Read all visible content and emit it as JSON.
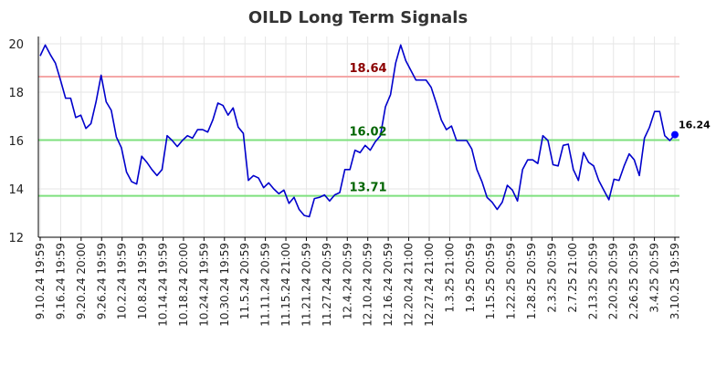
{
  "chart_data": {
    "type": "line",
    "title": "OILD Long Term Signals",
    "xlabel": "",
    "ylabel": "",
    "ylim": [
      12,
      20
    ],
    "yticks": [
      "12",
      "14",
      "16",
      "18",
      "20"
    ],
    "grid": true,
    "x_tick_labels": [
      "9.10.24 19:59",
      "9.16.24 19:59",
      "9.20.24 20:00",
      "9.26.24 19:59",
      "10.2.24 19:59",
      "10.8.24 19:59",
      "10.14.24 19:59",
      "10.18.24 20:00",
      "10.24.24 19:59",
      "10.30.24 19:59",
      "11.5.24 20:59",
      "11.11.24 20:59",
      "11.15.24 21:00",
      "11.21.24 20:59",
      "11.27.24 20:59",
      "12.4.24 20:59",
      "12.10.24 20:59",
      "12.16.24 20:59",
      "12.20.24 21:00",
      "12.27.24 21:00",
      "1.3.25 21:00",
      "1.9.25 20:59",
      "1.15.25 20:59",
      "1.22.25 20:59",
      "1.28.25 20:59",
      "2.3.25 20:59",
      "2.7.25 21:00",
      "2.13.25 20:59",
      "2.20.25 20:59",
      "2.26.25 20:59",
      "3.4.25 20:59",
      "3.10.25 19:59"
    ],
    "series": [
      {
        "color": "#0000cc",
        "values": [
          19.5,
          19.95,
          19.55,
          19.2,
          18.5,
          17.75,
          17.75,
          16.95,
          17.05,
          16.5,
          16.7,
          17.6,
          18.7,
          17.6,
          17.25,
          16.15,
          15.7,
          14.7,
          14.3,
          14.2,
          15.35,
          15.1,
          14.8,
          14.55,
          14.8,
          16.2,
          16.0,
          15.75,
          16.0,
          16.2,
          16.1,
          16.45,
          16.45,
          16.35,
          16.85,
          17.55,
          17.45,
          17.05,
          17.35,
          16.55,
          16.3,
          14.35,
          14.55,
          14.45,
          14.05,
          14.25,
          14.0,
          13.8,
          13.95,
          13.4,
          13.65,
          13.15,
          12.9,
          12.85,
          13.6,
          13.65,
          13.75,
          13.5,
          13.75,
          13.85,
          14.8,
          14.8,
          15.6,
          15.5,
          15.8,
          15.6,
          15.95,
          16.2,
          17.4,
          17.9,
          19.2,
          19.95,
          19.3,
          18.9,
          18.5,
          18.5,
          18.5,
          18.2,
          17.55,
          16.85,
          16.45,
          16.6,
          16.0,
          16.0,
          16.0,
          15.65,
          14.8,
          14.3,
          13.65,
          13.45,
          13.15,
          13.45,
          14.15,
          13.95,
          13.5,
          14.8,
          15.2,
          15.2,
          15.05,
          16.2,
          16.0,
          15.0,
          14.95,
          15.8,
          15.85,
          14.8,
          14.35,
          15.5,
          15.1,
          14.95,
          14.35,
          13.95,
          13.55,
          14.4,
          14.35,
          14.95,
          15.45,
          15.2,
          14.55,
          16.1,
          16.55,
          17.2,
          17.2,
          16.2,
          16.0,
          16.24
        ]
      }
    ],
    "horizontal_lines": [
      {
        "value": 18.64,
        "label": "18.64",
        "line_color": "#f4a7a7",
        "label_color": "#8b0000"
      },
      {
        "value": 16.02,
        "label": "16.02",
        "line_color": "#7ee07e",
        "label_color": "#006400"
      },
      {
        "value": 13.71,
        "label": "13.71",
        "line_color": "#7ee07e",
        "label_color": "#006400"
      }
    ],
    "last_point": {
      "value": 16.24,
      "label": "16.24",
      "color": "#0000ff"
    }
  }
}
